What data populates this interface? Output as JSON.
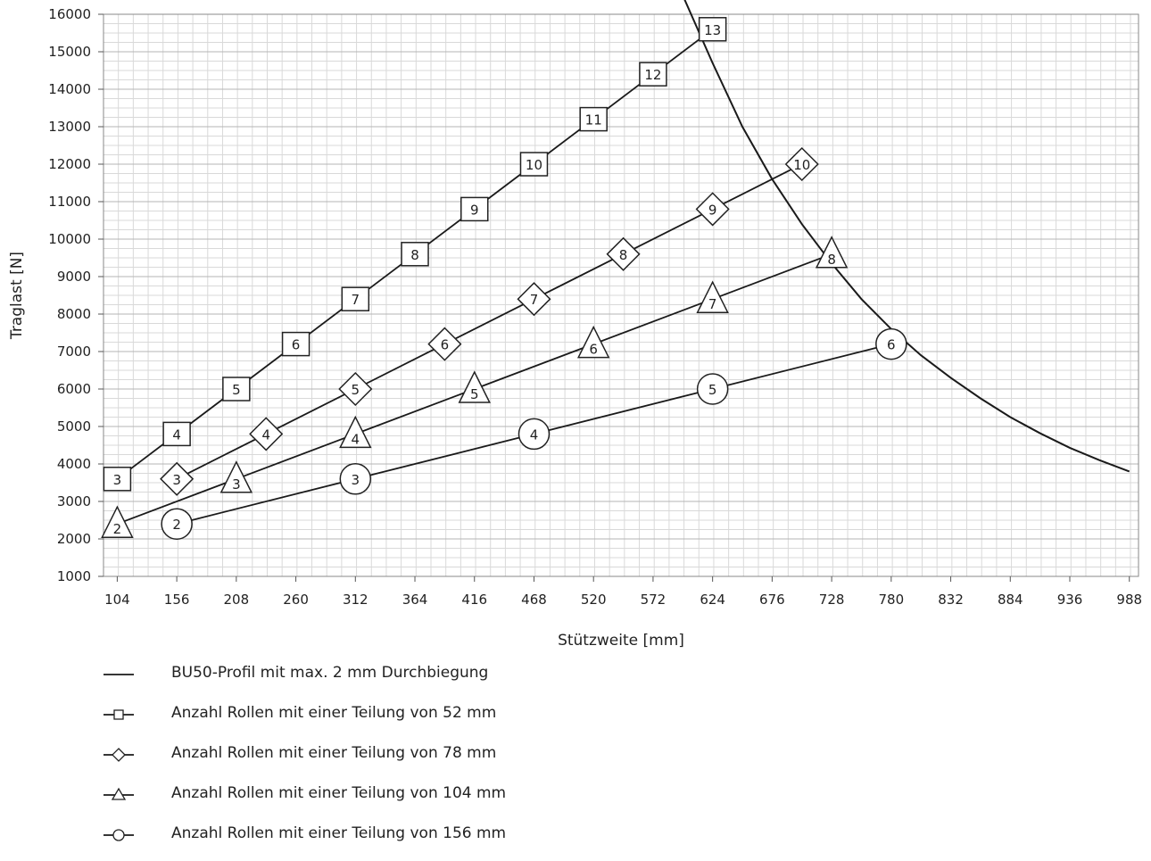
{
  "chart_data": {
    "type": "line",
    "xlabel": "Stützweite [mm]",
    "ylabel": "Traglast [N]",
    "xlim": [
      92,
      996
    ],
    "ylim": [
      1000,
      16000
    ],
    "x_ticks": [
      104,
      156,
      208,
      260,
      312,
      364,
      416,
      468,
      520,
      572,
      624,
      676,
      728,
      780,
      832,
      884,
      936,
      988
    ],
    "y_ticks": [
      1000,
      2000,
      3000,
      4000,
      5000,
      6000,
      7000,
      8000,
      9000,
      10000,
      11000,
      12000,
      13000,
      14000,
      15000,
      16000
    ],
    "grid": true,
    "legend_position": "below",
    "series": [
      {
        "name": "BU50-Profil mit max. 2 mm Durchbiegung",
        "marker": "none",
        "points": [
          {
            "x": 598,
            "y": 16500
          },
          {
            "x": 624,
            "y": 14700
          },
          {
            "x": 650,
            "y": 13000
          },
          {
            "x": 676,
            "y": 11600
          },
          {
            "x": 702,
            "y": 10400
          },
          {
            "x": 728,
            "y": 9350
          },
          {
            "x": 754,
            "y": 8400
          },
          {
            "x": 780,
            "y": 7600
          },
          {
            "x": 806,
            "y": 6900
          },
          {
            "x": 832,
            "y": 6300
          },
          {
            "x": 858,
            "y": 5750
          },
          {
            "x": 884,
            "y": 5250
          },
          {
            "x": 910,
            "y": 4820
          },
          {
            "x": 936,
            "y": 4430
          },
          {
            "x": 962,
            "y": 4100
          },
          {
            "x": 988,
            "y": 3800
          }
        ]
      },
      {
        "name": "Anzahl Rollen mit einer Teilung von 52 mm",
        "marker": "square",
        "points": [
          {
            "x": 104,
            "y": 3600,
            "label": "3"
          },
          {
            "x": 156,
            "y": 4800,
            "label": "4"
          },
          {
            "x": 208,
            "y": 6000,
            "label": "5"
          },
          {
            "x": 260,
            "y": 7200,
            "label": "6"
          },
          {
            "x": 312,
            "y": 8400,
            "label": "7"
          },
          {
            "x": 364,
            "y": 9600,
            "label": "8"
          },
          {
            "x": 416,
            "y": 10800,
            "label": "9"
          },
          {
            "x": 468,
            "y": 12000,
            "label": "10"
          },
          {
            "x": 520,
            "y": 13200,
            "label": "11"
          },
          {
            "x": 572,
            "y": 14400,
            "label": "12"
          },
          {
            "x": 624,
            "y": 15600,
            "label": "13"
          }
        ]
      },
      {
        "name": "Anzahl Rollen mit einer Teilung von 78 mm",
        "marker": "diamond",
        "points": [
          {
            "x": 156,
            "y": 3600,
            "label": "3"
          },
          {
            "x": 234,
            "y": 4800,
            "label": "4"
          },
          {
            "x": 312,
            "y": 6000,
            "label": "5"
          },
          {
            "x": 390,
            "y": 7200,
            "label": "6"
          },
          {
            "x": 468,
            "y": 8400,
            "label": "7"
          },
          {
            "x": 546,
            "y": 9600,
            "label": "8"
          },
          {
            "x": 624,
            "y": 10800,
            "label": "9"
          },
          {
            "x": 702,
            "y": 12000,
            "label": "10"
          }
        ]
      },
      {
        "name": "Anzahl Rollen mit einer Teilung von 104 mm",
        "marker": "triangle",
        "points": [
          {
            "x": 104,
            "y": 2400,
            "label": "2"
          },
          {
            "x": 208,
            "y": 3600,
            "label": "3"
          },
          {
            "x": 312,
            "y": 4800,
            "label": "4"
          },
          {
            "x": 416,
            "y": 6000,
            "label": "5"
          },
          {
            "x": 520,
            "y": 7200,
            "label": "6"
          },
          {
            "x": 624,
            "y": 8400,
            "label": "7"
          },
          {
            "x": 728,
            "y": 9600,
            "label": "8"
          }
        ]
      },
      {
        "name": "Anzahl Rollen mit einer Teilung von 156 mm",
        "marker": "circle",
        "points": [
          {
            "x": 156,
            "y": 2400,
            "label": "2"
          },
          {
            "x": 312,
            "y": 3600,
            "label": "3"
          },
          {
            "x": 468,
            "y": 4800,
            "label": "4"
          },
          {
            "x": 624,
            "y": 6000,
            "label": "5"
          },
          {
            "x": 780,
            "y": 7200,
            "label": "6"
          }
        ]
      }
    ]
  }
}
